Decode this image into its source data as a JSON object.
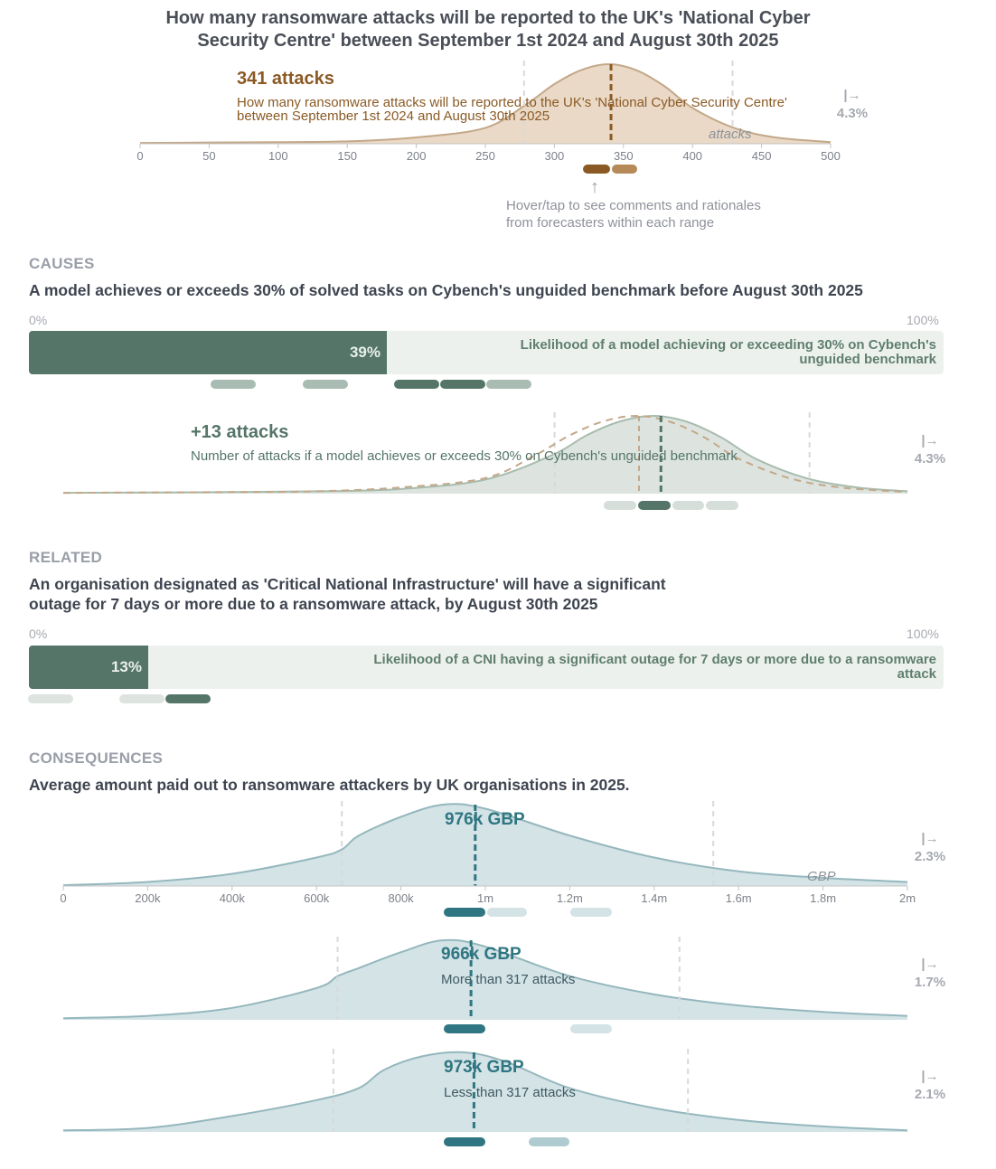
{
  "main": {
    "title_line1": "How many ransomware attacks will be reported to the UK's 'National Cyber",
    "title_line2": "Security Centre' between September 1st 2024 and August 30th 2025",
    "value": "341 attacks",
    "subtitle_line1": "How many ransomware attacks will be reported to the UK's 'National Cyber Security Centre'",
    "subtitle_line2": "between September 1st 2024 and August 30th 2025",
    "unit": "attacks",
    "rate_arrow": "|→",
    "rate": "4.3%",
    "axis_ticks": [
      "0",
      "50",
      "100",
      "150",
      "200",
      "250",
      "300",
      "350",
      "400",
      "450",
      "500"
    ],
    "hint_line1": "Hover/tap to see comments and rationales",
    "hint_line2": "from forecasters within each range",
    "hint_arrow": "↑"
  },
  "causes": {
    "label": "CAUSES",
    "title": "A model achieves or exceeds 30% of solved tasks on Cybench's unguided benchmark before August 30th 2025",
    "pct_min": "0%",
    "pct_max": "100%",
    "bar_value": "39%",
    "bar_text_line1": "Likelihood of a model achieving or exceeding 30% on Cybench's",
    "bar_text_line2": "unguided benchmark",
    "delta_value": "+13 attacks",
    "delta_subtitle": "Number of attacks if a model achieves or exceeds 30% on Cybench's unguided benchmark",
    "rate_arrow": "|→",
    "rate": "4.3%"
  },
  "related": {
    "label": "RELATED",
    "title_line1": "An organisation designated as 'Critical National Infrastructure' will have a significant",
    "title_line2": "outage for 7 days or more due to a ransomware attack, by August 30th 2025",
    "pct_min": "0%",
    "pct_max": "100%",
    "bar_value": "13%",
    "bar_text_line1": "Likelihood of a CNI having a significant outage for 7 days or more due to a ransomware",
    "bar_text_line2": "attack"
  },
  "consequences": {
    "label": "CONSEQUENCES",
    "title": "Average amount paid out to ransomware attackers by UK organisations in 2025.",
    "chart1_value": "976k GBP",
    "chart1_unit": "GBP",
    "chart1_rate_arrow": "|→",
    "chart1_rate": "2.3%",
    "axis_ticks": [
      "0",
      "200k",
      "400k",
      "600k",
      "800k",
      "1m",
      "1.2m",
      "1.4m",
      "1.6m",
      "1.8m",
      "2m"
    ],
    "chart2_value": "966k GBP",
    "chart2_subtitle": "More than 317 attacks",
    "chart2_rate_arrow": "|→",
    "chart2_rate": "1.7%",
    "chart3_value": "973k GBP",
    "chart3_subtitle": "Less than 317 attacks",
    "chart3_rate_arrow": "|→",
    "chart3_rate": "2.1%"
  },
  "colors": {
    "main_fill": "#ead9c6",
    "main_line": "#c3a889",
    "main_accent": "#8b5a24",
    "causes_fill": "#dde4df",
    "causes_line": "#a8bcae",
    "causes_accent": "#547567",
    "conseq_fill": "#d3e3e6",
    "conseq_line": "#95b7bd",
    "conseq_accent": "#2f7682"
  },
  "chart_data": [
    {
      "type": "area",
      "title": "How many ransomware attacks will be reported to the UK's 'National Cyber Security Centre' between September 1st 2024 and August 30th 2025",
      "xlabel": "attacks",
      "xlim": [
        0,
        500
      ],
      "median": 341,
      "interval": [
        278,
        429
      ],
      "x": [
        0,
        50,
        100,
        150,
        200,
        250,
        280,
        300,
        320,
        340,
        360,
        380,
        400,
        430,
        460,
        500
      ],
      "density": [
        0.01,
        0.015,
        0.02,
        0.03,
        0.08,
        0.2,
        0.5,
        0.75,
        0.93,
        1.0,
        0.92,
        0.72,
        0.45,
        0.2,
        0.08,
        0.02
      ]
    },
    {
      "type": "area",
      "title": "Number of attacks if a model achieves or exceeds 30% on Cybench's unguided benchmark",
      "xlim": [
        0,
        500
      ],
      "shift": 13,
      "median": 354,
      "baseline_median": 341,
      "interval": [
        291,
        442
      ],
      "x": [
        0,
        50,
        100,
        150,
        200,
        250,
        290,
        310,
        330,
        350,
        370,
        390,
        410,
        440,
        470,
        500
      ],
      "density": [
        0.01,
        0.015,
        0.02,
        0.03,
        0.06,
        0.18,
        0.5,
        0.75,
        0.93,
        1.0,
        0.92,
        0.72,
        0.45,
        0.2,
        0.08,
        0.03
      ]
    },
    {
      "type": "area",
      "title": "Average amount paid out to ransomware attackers by UK organisations in 2025.",
      "xlabel": "GBP",
      "xlim": [
        0,
        2000000
      ],
      "median": 976000,
      "interval": [
        660000,
        1540000
      ],
      "x": [
        0,
        200000,
        400000,
        600000,
        660000,
        700000,
        800000,
        900000,
        1000000,
        1200000,
        1400000,
        1600000,
        1800000,
        2000000
      ],
      "density": [
        0.01,
        0.05,
        0.15,
        0.35,
        0.45,
        0.62,
        0.85,
        1.0,
        0.95,
        0.62,
        0.35,
        0.18,
        0.1,
        0.05
      ]
    },
    {
      "type": "area",
      "title": "More than 317 attacks",
      "xlim": [
        0,
        2000000
      ],
      "median": 966000,
      "interval": [
        650000,
        1460000
      ],
      "x": [
        0,
        200000,
        400000,
        600000,
        650000,
        700000,
        800000,
        900000,
        1000000,
        1200000,
        1400000,
        1600000,
        1800000,
        2000000
      ],
      "density": [
        0.02,
        0.05,
        0.15,
        0.4,
        0.55,
        0.65,
        0.85,
        1.0,
        0.92,
        0.55,
        0.32,
        0.18,
        0.1,
        0.05
      ]
    },
    {
      "type": "area",
      "title": "Less than 317 attacks",
      "xlim": [
        0,
        2000000
      ],
      "median": 973000,
      "interval": [
        640000,
        1480000
      ],
      "x": [
        0,
        200000,
        400000,
        600000,
        700000,
        760000,
        850000,
        950000,
        1050000,
        1200000,
        1400000,
        1600000,
        1800000,
        2000000
      ],
      "density": [
        0.02,
        0.05,
        0.2,
        0.4,
        0.55,
        0.78,
        0.95,
        1.0,
        0.88,
        0.55,
        0.3,
        0.15,
        0.07,
        0.02
      ]
    }
  ]
}
